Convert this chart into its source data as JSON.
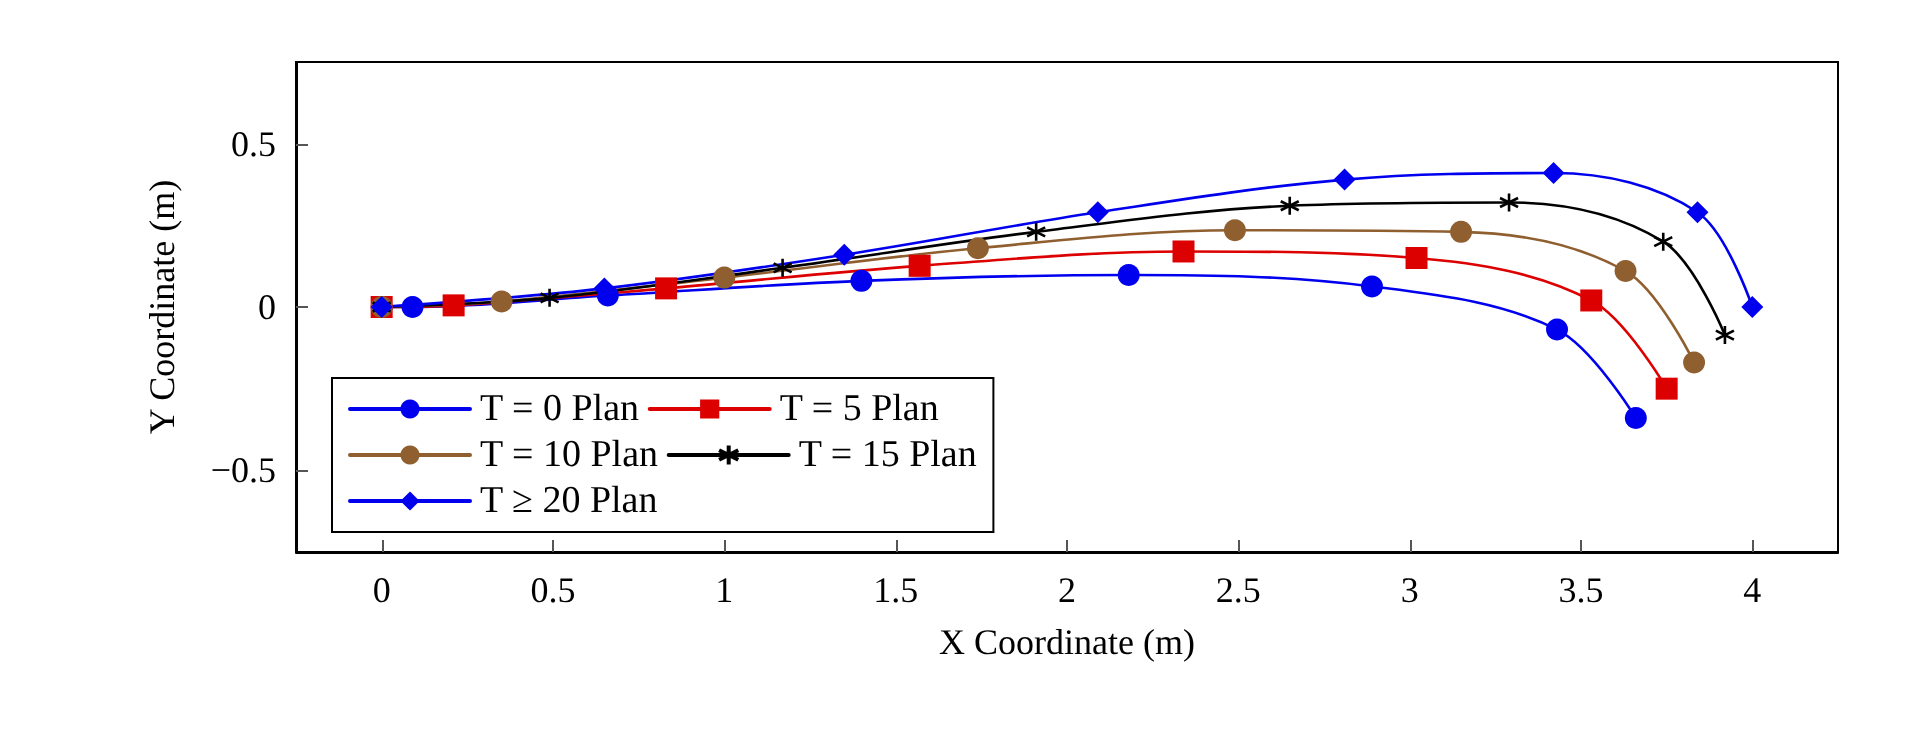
{
  "chart_data": {
    "type": "line",
    "xlabel": "X Coordinate (m)",
    "ylabel": "Y Coordinate (m)",
    "xlim": [
      -0.25,
      4.25
    ],
    "ylim": [
      -0.75,
      0.75
    ],
    "xticks": [
      0,
      0.5,
      1,
      1.5,
      2,
      2.5,
      3,
      3.5,
      4
    ],
    "yticks": [
      {
        "value": -0.5,
        "label": "−0.5"
      },
      0,
      0.5
    ],
    "grid": false,
    "legend": "bottom left",
    "line_style": "solid",
    "series": [
      {
        "name": "T = 0 Plan",
        "color": "#0000ee",
        "marker": "circle",
        "x": [
          0,
          0.09,
          0.66,
          1.4,
          2.18,
          2.89,
          3.43,
          3.66
        ],
        "values": [
          0,
          0,
          0.035,
          0.08,
          0.098,
          0.063,
          -0.069,
          -0.34
        ]
      },
      {
        "name": "T = 5 Plan",
        "color": "#dd0000",
        "marker": "square",
        "x": [
          0,
          0.21,
          0.83,
          1.57,
          2.34,
          3.02,
          3.53,
          3.75
        ],
        "values": [
          0,
          0.005,
          0.057,
          0.126,
          0.17,
          0.15,
          0.02,
          -0.25
        ]
      },
      {
        "name": "T = 10 Plan",
        "color": "#8f5f2f",
        "marker": "circle",
        "x": [
          0,
          0.35,
          1.0,
          1.74,
          2.49,
          3.15,
          3.63,
          3.83
        ],
        "values": [
          0,
          0.017,
          0.09,
          0.18,
          0.235,
          0.23,
          0.11,
          -0.17
        ]
      },
      {
        "name": "T = 15 Plan",
        "color": "#000000",
        "marker": "cross",
        "x": [
          0,
          0.49,
          1.17,
          1.91,
          2.65,
          3.29,
          3.74,
          3.92
        ],
        "values": [
          0,
          0.028,
          0.12,
          0.23,
          0.31,
          0.32,
          0.2,
          -0.086
        ]
      },
      {
        "name": "T ≥ 20 Plan",
        "color": "#0000ee",
        "marker": "diamond",
        "x": [
          0,
          0.65,
          1.35,
          2.09,
          2.81,
          3.42,
          3.84,
          4.0
        ],
        "values": [
          0,
          0.057,
          0.16,
          0.29,
          0.39,
          0.41,
          0.29,
          0
        ]
      }
    ]
  }
}
